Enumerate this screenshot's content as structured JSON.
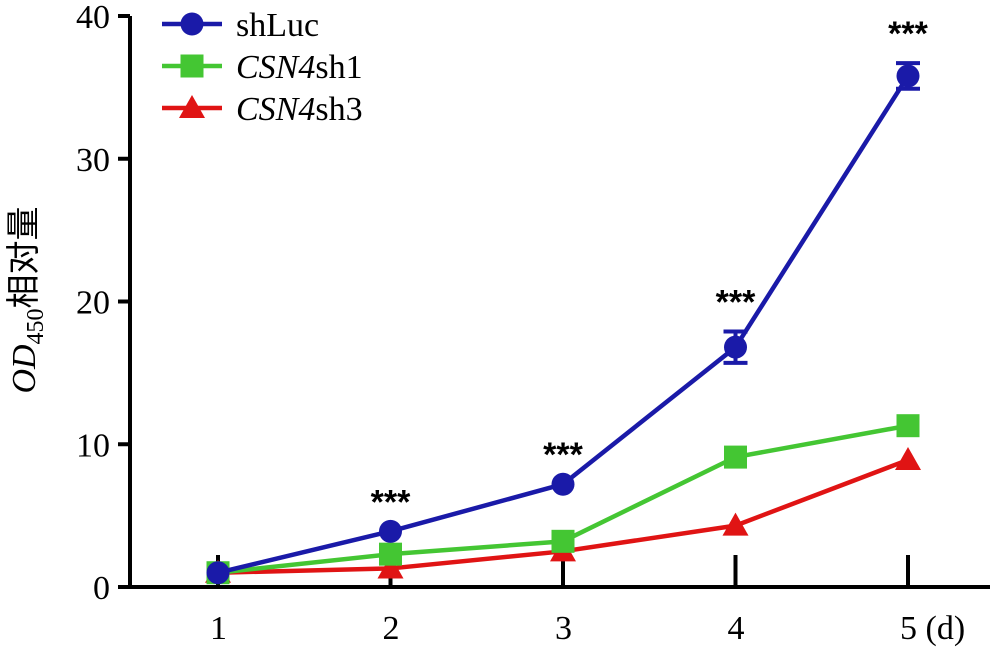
{
  "chart_data": {
    "type": "line",
    "x": [
      1,
      2,
      3,
      4,
      5
    ],
    "x_tick_labels": [
      "1",
      "2",
      "3",
      "4",
      "5 (d)"
    ],
    "y_ticks": [
      0,
      10,
      20,
      30,
      40
    ],
    "ylim": [
      0,
      40
    ],
    "ylabel": {
      "main": "OD",
      "subscript": "450",
      "suffix": "相对量"
    },
    "grid": false,
    "legend_position": "top-left",
    "series": [
      {
        "name": "shLuc",
        "name_italic_part": "",
        "name_plain_part": "shLuc",
        "color": "#1a1aa8",
        "marker": "circle",
        "values": [
          1.0,
          3.9,
          7.2,
          16.8,
          35.8
        ],
        "errors": [
          0,
          0,
          0,
          1.1,
          0.9
        ]
      },
      {
        "name": "CSN4sh1",
        "name_italic_part": "CSN4",
        "name_plain_part": "sh1",
        "color": "#44c633",
        "marker": "square",
        "values": [
          1.0,
          2.3,
          3.2,
          9.1,
          11.3
        ],
        "errors": [
          0,
          0,
          0,
          0,
          0
        ]
      },
      {
        "name": "CSN4sh3",
        "name_italic_part": "CSN4",
        "name_plain_part": "sh3",
        "color": "#e01414",
        "marker": "triangle",
        "values": [
          1.0,
          1.3,
          2.5,
          4.3,
          8.9
        ],
        "errors": [
          0,
          0,
          0,
          0,
          0
        ]
      }
    ],
    "annotations": [
      {
        "x": 2,
        "text": "***"
      },
      {
        "x": 3,
        "text": "***"
      },
      {
        "x": 4,
        "text": "***"
      },
      {
        "x": 5,
        "text": "***"
      }
    ]
  }
}
